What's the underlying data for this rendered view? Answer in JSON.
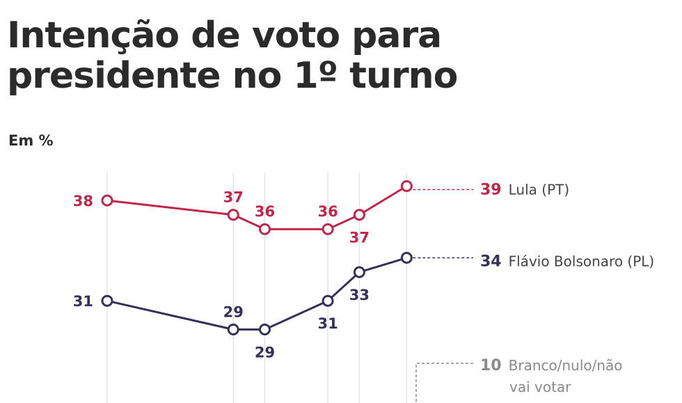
{
  "title_line1": "Intenção de voto para",
  "title_line2": "presidente no 1º turno",
  "subtitle": "Em %",
  "chart_data": {
    "type": "line",
    "title": "Intenção de voto para presidente no 1º turno",
    "unit": "Em %",
    "x_index": [
      0,
      4,
      5,
      7,
      8,
      9.5
    ],
    "grid": true,
    "series": [
      {
        "name": "Lula (PT)",
        "values": [
          38,
          37,
          36,
          36,
          37,
          39
        ],
        "color": "#c0264a",
        "end_value": "39"
      },
      {
        "name": "Flávio Bolsonaro (PL)",
        "values": [
          31,
          29,
          29,
          31,
          33,
          34
        ],
        "color": "#33305a",
        "end_value": "34"
      }
    ],
    "extra_label": {
      "value": "10",
      "name_line1": "Branco/nulo/não",
      "name_line2": "vai votar",
      "color": "#8a8a8a"
    }
  }
}
